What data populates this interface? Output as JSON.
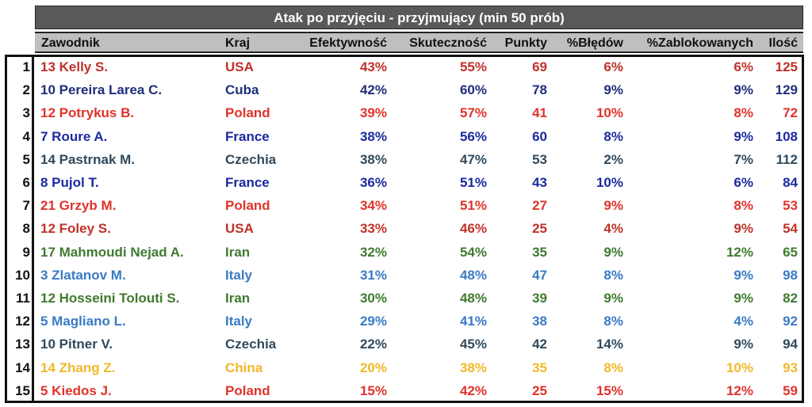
{
  "title": "Atak po przyjęciu - przyjmujący (min 50 prób)",
  "headers": {
    "player": "Zawodnik",
    "country": "Kraj",
    "efficiency": "Efektywność",
    "effectiveness": "Skuteczność",
    "points": "Punkty",
    "errors": "%Błędów",
    "blocked": "%Zablokowanych",
    "count": "Ilość"
  },
  "colors": {
    "USA": "#c0312a",
    "Cuba": "#1f2f7a",
    "Poland": "#e0332b",
    "France": "#1b2aa0",
    "Czechia": "#2f4a5e",
    "Iran": "#3f7a2f",
    "Italy": "#3a7ac4",
    "China": "#f2b82a"
  },
  "rows": [
    {
      "rank": "1",
      "player": "13 Kelly S.",
      "country": "USA",
      "efficiency": "43%",
      "effectiveness": "55%",
      "points": "69",
      "errors": "6%",
      "blocked": "6%",
      "count": "125",
      "color": "#c0312a"
    },
    {
      "rank": "2",
      "player": "10 Pereira Larea C.",
      "country": "Cuba",
      "efficiency": "42%",
      "effectiveness": "60%",
      "points": "78",
      "errors": "9%",
      "blocked": "9%",
      "count": "129",
      "color": "#1f2f7a"
    },
    {
      "rank": "3",
      "player": "12 Potrykus B.",
      "country": "Poland",
      "efficiency": "39%",
      "effectiveness": "57%",
      "points": "41",
      "errors": "10%",
      "blocked": "8%",
      "count": "72",
      "color": "#e0332b"
    },
    {
      "rank": "4",
      "player": "7 Roure A.",
      "country": "France",
      "efficiency": "38%",
      "effectiveness": "56%",
      "points": "60",
      "errors": "8%",
      "blocked": "9%",
      "count": "108",
      "color": "#1b2aa0"
    },
    {
      "rank": "5",
      "player": "14 Pastrnak M.",
      "country": "Czechia",
      "efficiency": "38%",
      "effectiveness": "47%",
      "points": "53",
      "errors": "2%",
      "blocked": "7%",
      "count": "112",
      "color": "#2f4a5e"
    },
    {
      "rank": "6",
      "player": "8 Pujol T.",
      "country": "France",
      "efficiency": "36%",
      "effectiveness": "51%",
      "points": "43",
      "errors": "10%",
      "blocked": "6%",
      "count": "84",
      "color": "#1b2aa0"
    },
    {
      "rank": "7",
      "player": "21 Grzyb M.",
      "country": "Poland",
      "efficiency": "34%",
      "effectiveness": "51%",
      "points": "27",
      "errors": "9%",
      "blocked": "8%",
      "count": "53",
      "color": "#e0332b"
    },
    {
      "rank": "8",
      "player": "12 Foley S.",
      "country": "USA",
      "efficiency": "33%",
      "effectiveness": "46%",
      "points": "25",
      "errors": "4%",
      "blocked": "9%",
      "count": "54",
      "color": "#c0312a"
    },
    {
      "rank": "9",
      "player": "17 Mahmoudi Nejad A.",
      "country": "Iran",
      "efficiency": "32%",
      "effectiveness": "54%",
      "points": "35",
      "errors": "9%",
      "blocked": "12%",
      "count": "65",
      "color": "#3f7a2f"
    },
    {
      "rank": "10",
      "player": "3 Zlatanov M.",
      "country": "Italy",
      "efficiency": "31%",
      "effectiveness": "48%",
      "points": "47",
      "errors": "8%",
      "blocked": "9%",
      "count": "98",
      "color": "#3a7ac4"
    },
    {
      "rank": "11",
      "player": "12 Hosseini Tolouti S.",
      "country": "Iran",
      "efficiency": "30%",
      "effectiveness": "48%",
      "points": "39",
      "errors": "9%",
      "blocked": "9%",
      "count": "82",
      "color": "#3f7a2f"
    },
    {
      "rank": "12",
      "player": "5 Magliano L.",
      "country": "Italy",
      "efficiency": "29%",
      "effectiveness": "41%",
      "points": "38",
      "errors": "8%",
      "blocked": "4%",
      "count": "92",
      "color": "#3a7ac4"
    },
    {
      "rank": "13",
      "player": "10 Pitner V.",
      "country": "Czechia",
      "efficiency": "22%",
      "effectiveness": "45%",
      "points": "42",
      "errors": "14%",
      "blocked": "9%",
      "count": "94",
      "color": "#2f4a5e"
    },
    {
      "rank": "14",
      "player": "14 Zhang Z.",
      "country": "China",
      "efficiency": "20%",
      "effectiveness": "38%",
      "points": "35",
      "errors": "8%",
      "blocked": "10%",
      "count": "93",
      "color": "#f2b82a"
    },
    {
      "rank": "15",
      "player": "5 Kiedos J.",
      "country": "Poland",
      "efficiency": "15%",
      "effectiveness": "42%",
      "points": "25",
      "errors": "15%",
      "blocked": "12%",
      "count": "59",
      "color": "#e0332b"
    }
  ]
}
